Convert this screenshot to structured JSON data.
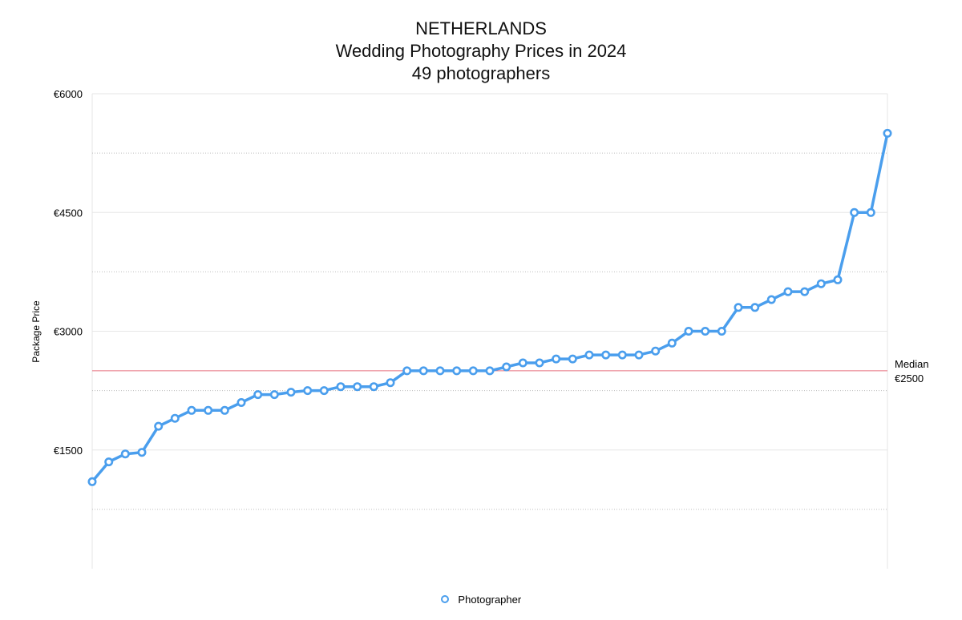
{
  "header": {
    "title": "NETHERLANDS",
    "subtitle": "Wedding Photography Prices in 2024",
    "count_line": "49 photographers"
  },
  "chart_data": {
    "type": "line",
    "title": "NETHERLANDS",
    "subtitle": "Wedding Photography Prices in 2024 — 49 photographers",
    "ylabel": "Package Price",
    "xlabel": "",
    "ylim": [
      0,
      6000
    ],
    "y_ticks": [
      1500,
      3000,
      4500,
      6000
    ],
    "y_tick_labels": [
      "€1500",
      "€3000",
      "€4500",
      "€6000"
    ],
    "minor_gridlines": [
      750,
      2250,
      3750,
      5250
    ],
    "grid": true,
    "legend_position": "bottom-center",
    "series": [
      {
        "name": "Photographer",
        "color": "#4a9eed",
        "values": [
          1100,
          1350,
          1450,
          1470,
          1800,
          1900,
          2000,
          2000,
          2000,
          2100,
          2200,
          2200,
          2230,
          2250,
          2250,
          2300,
          2300,
          2300,
          2350,
          2500,
          2500,
          2500,
          2500,
          2500,
          2500,
          2550,
          2600,
          2600,
          2650,
          2650,
          2700,
          2700,
          2700,
          2700,
          2750,
          2850,
          3000,
          3000,
          3000,
          3300,
          3300,
          3400,
          3500,
          3500,
          3600,
          3650,
          4500,
          4500,
          5500
        ]
      }
    ],
    "reference_lines": [
      {
        "label_line1": "Median",
        "label_line2": "€2500",
        "value": 2500,
        "color": "#e8717f"
      }
    ]
  },
  "legend": {
    "label": "Photographer"
  }
}
